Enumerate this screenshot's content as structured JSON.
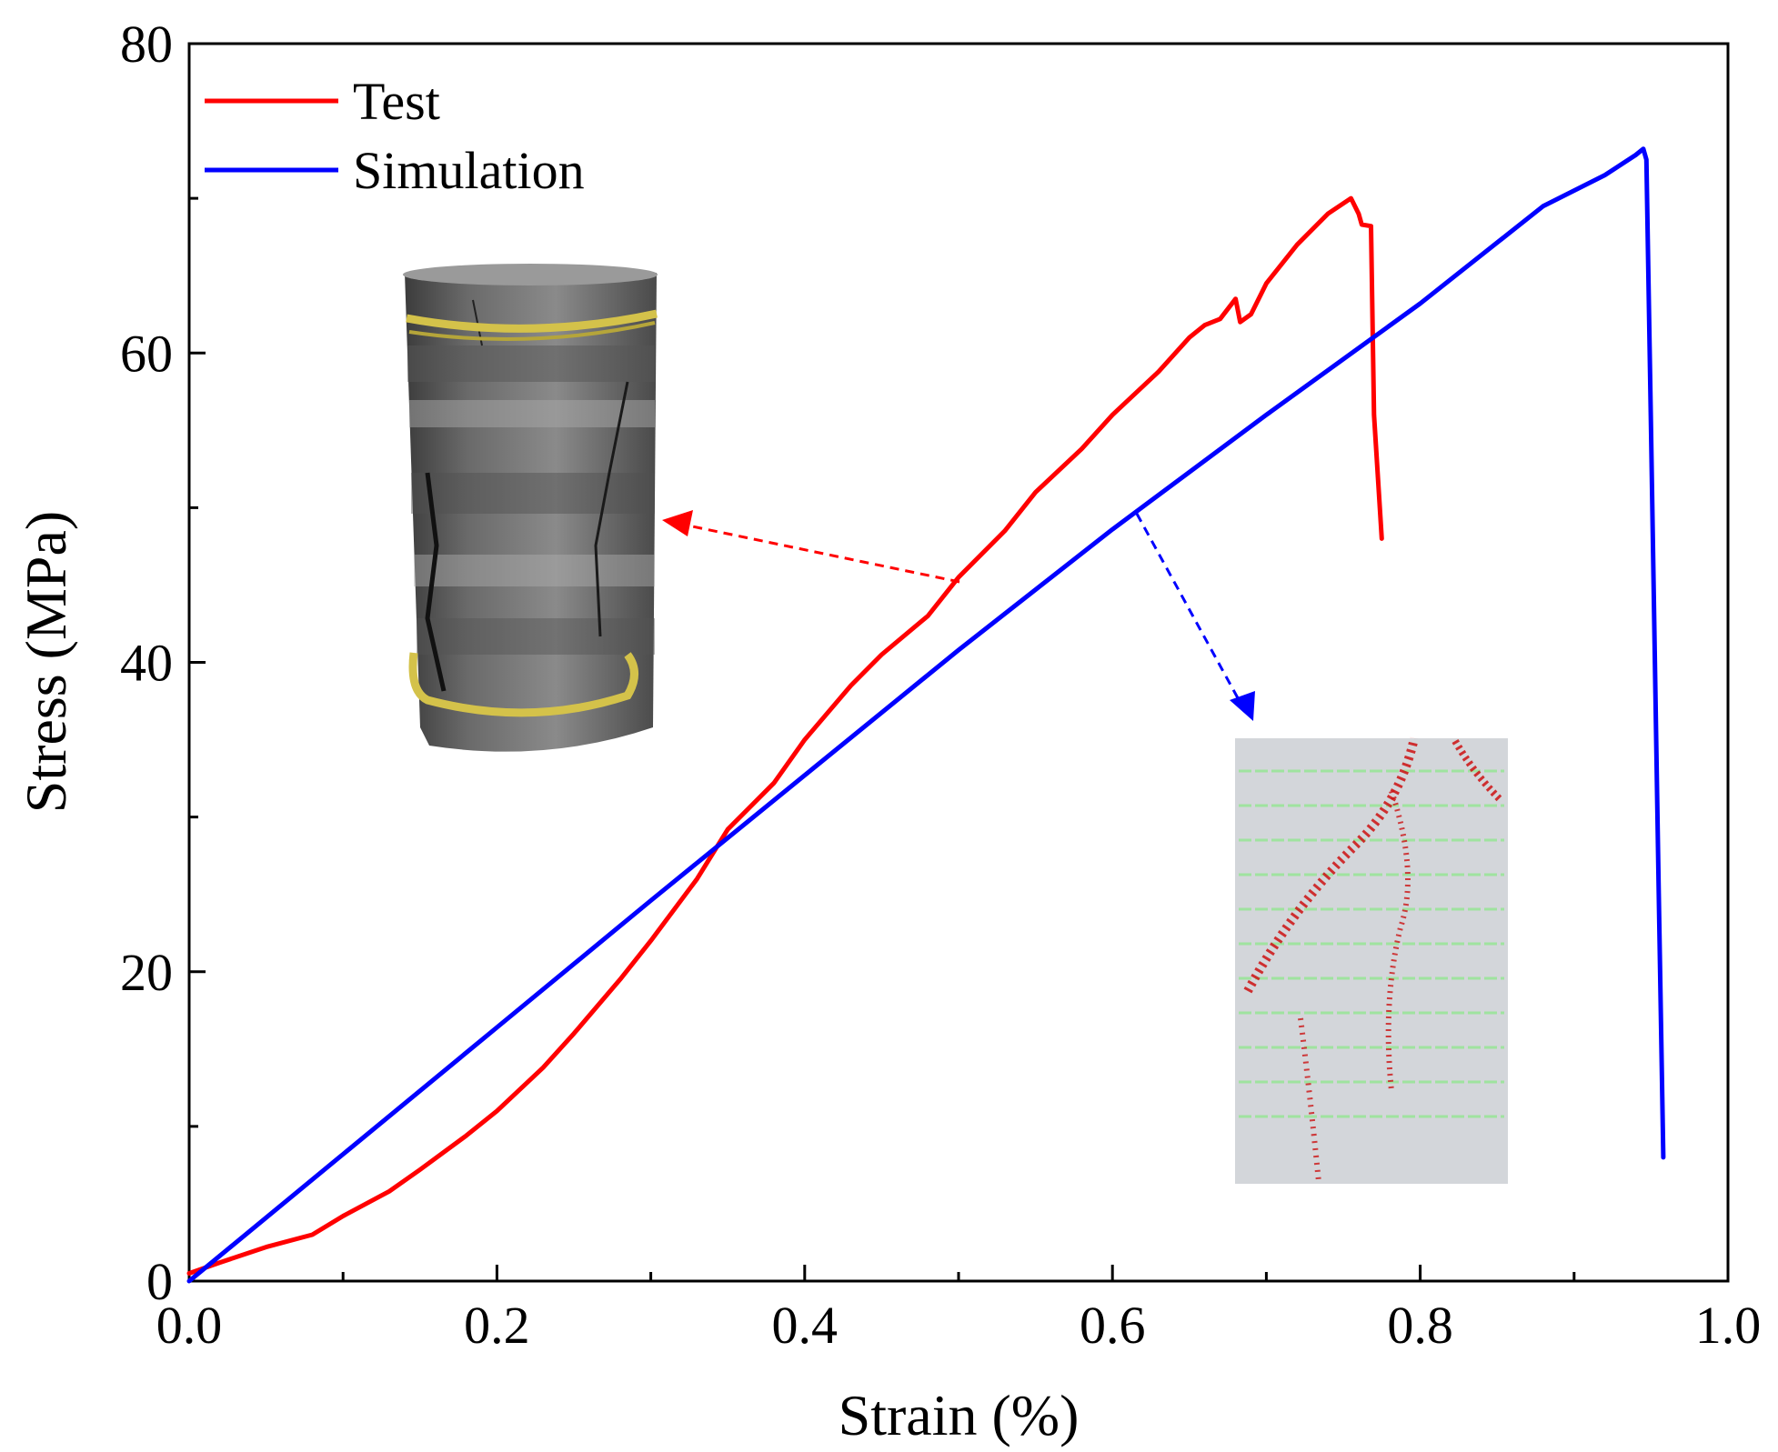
{
  "chart_data": {
    "type": "line",
    "xlabel": "Strain (%)",
    "ylabel": "Stress (MPa)",
    "xlim": [
      0.0,
      1.0
    ],
    "ylim": [
      0,
      80
    ],
    "x_ticks": [
      "0.0",
      "0.2",
      "0.4",
      "0.6",
      "0.8",
      "1.0"
    ],
    "y_ticks": [
      "0",
      "20",
      "40",
      "60",
      "80"
    ],
    "grid": false,
    "legend_position": "top-left",
    "series": [
      {
        "name": "Test",
        "color": "#ff0000",
        "x": [
          0.0,
          0.02,
          0.05,
          0.08,
          0.1,
          0.13,
          0.15,
          0.18,
          0.2,
          0.23,
          0.25,
          0.28,
          0.3,
          0.33,
          0.35,
          0.38,
          0.4,
          0.43,
          0.45,
          0.48,
          0.5,
          0.53,
          0.55,
          0.58,
          0.6,
          0.63,
          0.65,
          0.66,
          0.67,
          0.68,
          0.683,
          0.69,
          0.7,
          0.72,
          0.74,
          0.755,
          0.76,
          0.762,
          0.768,
          0.77,
          0.775
        ],
        "y": [
          0.5,
          1.2,
          2.2,
          3.0,
          4.2,
          5.8,
          7.2,
          9.4,
          11.0,
          13.8,
          16.0,
          19.5,
          22.0,
          26.0,
          29.2,
          32.2,
          35.0,
          38.5,
          40.5,
          43.0,
          45.5,
          48.5,
          51.0,
          53.8,
          56.0,
          58.8,
          61.0,
          61.8,
          62.2,
          63.5,
          62.0,
          62.5,
          64.5,
          67.0,
          69.0,
          70.0,
          69.0,
          68.3,
          68.2,
          56.0,
          48.0
        ]
      },
      {
        "name": "Simulation",
        "color": "#0000ff",
        "x": [
          0.0,
          0.1,
          0.2,
          0.3,
          0.4,
          0.5,
          0.6,
          0.7,
          0.8,
          0.88,
          0.92,
          0.94,
          0.945,
          0.947,
          0.95,
          0.955,
          0.958
        ],
        "y": [
          0.0,
          8.2,
          16.4,
          24.6,
          32.7,
          40.8,
          48.6,
          56.0,
          63.2,
          69.5,
          71.5,
          72.8,
          73.2,
          72.5,
          55.0,
          25.0,
          8.0
        ]
      }
    ]
  }
}
